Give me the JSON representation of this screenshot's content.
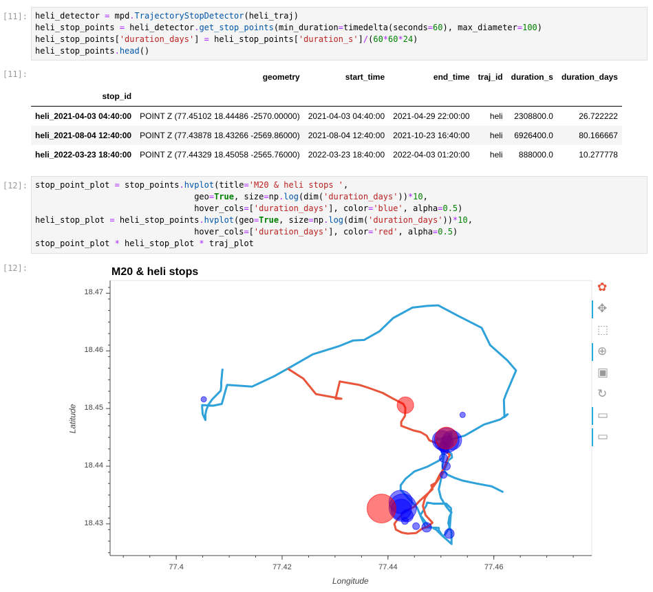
{
  "cells": [
    {
      "prompt": "[11]:",
      "lines": [
        [
          [
            "tk-var",
            "heli_detector "
          ],
          [
            "tk-op",
            "="
          ],
          [
            "tk-var",
            " mpd"
          ],
          [
            "tk-op",
            "."
          ],
          [
            "tk-fn",
            "TrajectoryStopDetector"
          ],
          [
            "tk-var",
            "(heli_traj)"
          ]
        ],
        [
          [
            "tk-var",
            "heli_stop_points "
          ],
          [
            "tk-op",
            "="
          ],
          [
            "tk-var",
            " heli_detector"
          ],
          [
            "tk-op",
            "."
          ],
          [
            "tk-fn",
            "get_stop_points"
          ],
          [
            "tk-var",
            "(min_duration"
          ],
          [
            "tk-op",
            "="
          ],
          [
            "tk-var",
            "timedelta(seconds"
          ],
          [
            "tk-op",
            "="
          ],
          [
            "tk-num",
            "60"
          ],
          [
            "tk-var",
            "), max_diameter"
          ],
          [
            "tk-op",
            "="
          ],
          [
            "tk-num",
            "100"
          ],
          [
            "tk-var",
            ")"
          ]
        ],
        [
          [
            "tk-var",
            "heli_stop_points["
          ],
          [
            "tk-str",
            "'duration_days'"
          ],
          [
            "tk-var",
            "] "
          ],
          [
            "tk-op",
            "="
          ],
          [
            "tk-var",
            " heli_stop_points["
          ],
          [
            "tk-str",
            "'duration_s'"
          ],
          [
            "tk-var",
            "]"
          ],
          [
            "tk-op",
            "/"
          ],
          [
            "tk-var",
            "("
          ],
          [
            "tk-num",
            "60"
          ],
          [
            "tk-op",
            "*"
          ],
          [
            "tk-num",
            "60"
          ],
          [
            "tk-op",
            "*"
          ],
          [
            "tk-num",
            "24"
          ],
          [
            "tk-var",
            ")"
          ]
        ],
        [
          [
            "tk-var",
            "heli_stop_points"
          ],
          [
            "tk-op",
            "."
          ],
          [
            "tk-fn",
            "head"
          ],
          [
            "tk-var",
            "()"
          ]
        ]
      ]
    },
    {
      "prompt": "[12]:",
      "lines": [
        [
          [
            "tk-var",
            "stop_point_plot "
          ],
          [
            "tk-op",
            "="
          ],
          [
            "tk-var",
            " stop_points"
          ],
          [
            "tk-op",
            "."
          ],
          [
            "tk-fn",
            "hvplot"
          ],
          [
            "tk-var",
            "(title"
          ],
          [
            "tk-op",
            "="
          ],
          [
            "tk-str",
            "'M20 & heli stops '"
          ],
          [
            "tk-var",
            ","
          ]
        ],
        [
          [
            "tk-var",
            "                                geo"
          ],
          [
            "tk-op",
            "="
          ],
          [
            "tk-kw",
            "True"
          ],
          [
            "tk-var",
            ", size"
          ],
          [
            "tk-op",
            "="
          ],
          [
            "tk-var",
            "np"
          ],
          [
            "tk-op",
            "."
          ],
          [
            "tk-fn",
            "log"
          ],
          [
            "tk-var",
            "(dim("
          ],
          [
            "tk-str",
            "'duration_days'"
          ],
          [
            "tk-var",
            "))"
          ],
          [
            "tk-op",
            "*"
          ],
          [
            "tk-num",
            "10"
          ],
          [
            "tk-var",
            ","
          ]
        ],
        [
          [
            "tk-var",
            "                                hover_cols"
          ],
          [
            "tk-op",
            "="
          ],
          [
            "tk-var",
            "["
          ],
          [
            "tk-str",
            "'duration_days'"
          ],
          [
            "tk-var",
            "], color"
          ],
          [
            "tk-op",
            "="
          ],
          [
            "tk-str",
            "'blue'"
          ],
          [
            "tk-var",
            ", alpha"
          ],
          [
            "tk-op",
            "="
          ],
          [
            "tk-num",
            "0.5"
          ],
          [
            "tk-var",
            ")"
          ]
        ],
        [
          [
            "tk-var",
            "heli_stop_plot "
          ],
          [
            "tk-op",
            "="
          ],
          [
            "tk-var",
            " heli_stop_points"
          ],
          [
            "tk-op",
            "."
          ],
          [
            "tk-fn",
            "hvplot"
          ],
          [
            "tk-var",
            "(geo"
          ],
          [
            "tk-op",
            "="
          ],
          [
            "tk-kw",
            "True"
          ],
          [
            "tk-var",
            ", size"
          ],
          [
            "tk-op",
            "="
          ],
          [
            "tk-var",
            "np"
          ],
          [
            "tk-op",
            "."
          ],
          [
            "tk-fn",
            "log"
          ],
          [
            "tk-var",
            "(dim("
          ],
          [
            "tk-str",
            "'duration_days'"
          ],
          [
            "tk-var",
            "))"
          ],
          [
            "tk-op",
            "*"
          ],
          [
            "tk-num",
            "10"
          ],
          [
            "tk-var",
            ","
          ]
        ],
        [
          [
            "tk-var",
            "                                hover_cols"
          ],
          [
            "tk-op",
            "="
          ],
          [
            "tk-var",
            "["
          ],
          [
            "tk-str",
            "'duration_days'"
          ],
          [
            "tk-var",
            "], color"
          ],
          [
            "tk-op",
            "="
          ],
          [
            "tk-str",
            "'red'"
          ],
          [
            "tk-var",
            ", alpha"
          ],
          [
            "tk-op",
            "="
          ],
          [
            "tk-num",
            "0.5"
          ],
          [
            "tk-var",
            ")"
          ]
        ],
        [
          [
            "tk-var",
            "stop_point_plot "
          ],
          [
            "tk-op",
            "*"
          ],
          [
            "tk-var",
            " heli_stop_plot "
          ],
          [
            "tk-op",
            "*"
          ],
          [
            "tk-var",
            " traj_plot"
          ]
        ]
      ]
    }
  ],
  "out_prompts": {
    "table": "[11]:",
    "plot": "[12]:"
  },
  "table": {
    "columns": [
      "geometry",
      "start_time",
      "end_time",
      "traj_id",
      "duration_s",
      "duration_days"
    ],
    "index_name": "stop_id",
    "rows": [
      {
        "stop_id": "heli_2021-04-03 04:40:00",
        "cells": [
          "POINT Z (77.45102 18.44486 -2570.00000)",
          "2021-04-03 04:40:00",
          "2021-04-29 22:00:00",
          "heli",
          "2308800.0",
          "26.722222"
        ]
      },
      {
        "stop_id": "heli_2021-08-04 12:40:00",
        "cells": [
          "POINT Z (77.43878 18.43266 -2569.86000)",
          "2021-08-04 12:40:00",
          "2021-10-23 16:40:00",
          "heli",
          "6926400.0",
          "80.166667"
        ]
      },
      {
        "stop_id": "heli_2022-03-23 18:40:00",
        "cells": [
          "POINT Z (77.44329 18.45058 -2565.76000)",
          "2022-03-23 18:40:00",
          "2022-04-03 01:20:00",
          "heli",
          "888000.0",
          "10.277778"
        ]
      }
    ]
  },
  "plot": {
    "title": "M20 & heli stops",
    "xlabel": "Longitude",
    "ylabel": "Latitude",
    "colors": {
      "traj": "#30a2da",
      "heli": "#e9553a",
      "m20": "#0000ff",
      "heli_stop": "#ff0000",
      "tool_active": "#26aae1"
    }
  },
  "chart_data": {
    "type": "scatter",
    "title": "M20 & heli stops",
    "xlabel": "Longitude",
    "ylabel": "Latitude",
    "xlim": [
      77.3875,
      77.4785
    ],
    "ylim": [
      18.4245,
      18.4722
    ],
    "xticks": [
      "77.4",
      "77.42",
      "77.44",
      "77.46"
    ],
    "yticks": [
      "18.43",
      "18.44",
      "18.45",
      "18.46",
      "18.47"
    ],
    "series": [
      {
        "type": "line",
        "x": [
          77.4088,
          77.4087,
          77.4086,
          77.4085,
          77.4085,
          77.4084,
          77.4068,
          77.4061,
          77.4057,
          77.4055,
          77.4055,
          77.405,
          77.4049,
          77.4049,
          77.407,
          77.4086,
          77.4096,
          77.4143,
          77.4185,
          77.4218,
          77.4258,
          77.4307,
          77.4334,
          77.4355,
          77.4384,
          77.441,
          77.4446,
          77.4474,
          77.4495,
          77.4532,
          77.4577,
          77.4593,
          77.4625,
          77.4642,
          77.4623,
          77.4619,
          77.462,
          77.4626,
          77.4612,
          77.4581,
          77.4545,
          77.4521,
          77.4509,
          77.4512,
          77.452,
          77.4521,
          77.4514,
          77.4502,
          77.4496,
          77.45,
          77.451,
          77.4517,
          77.452,
          77.4516,
          77.4514,
          77.452,
          77.452,
          77.4513,
          77.4503,
          77.4491,
          77.4476,
          77.4466,
          77.4461,
          77.4468,
          77.4472,
          77.4474,
          77.4486,
          77.451,
          77.4519,
          77.4519,
          77.4517,
          77.4509,
          77.4504,
          77.4496,
          77.4496,
          77.4471,
          77.4462,
          77.4455,
          77.444,
          77.4434,
          77.4424,
          77.4424,
          77.4433,
          77.445,
          77.4474,
          77.4495,
          77.4504,
          77.4502,
          77.45,
          77.4499,
          77.4519,
          77.4521,
          77.4517,
          77.4514,
          77.4507,
          77.4493,
          77.4491,
          77.4498,
          77.4515,
          77.452,
          77.4518,
          77.452,
          77.452,
          77.4509,
          77.4506,
          77.4506,
          77.4503,
          77.4503,
          77.4513,
          77.4525,
          77.4541,
          77.4567,
          77.4596,
          77.4618
        ],
        "y": [
          18.4569,
          18.4566,
          18.4555,
          18.4546,
          18.4538,
          18.4531,
          18.4516,
          18.4507,
          18.4498,
          18.449,
          18.448,
          18.449,
          18.4501,
          18.4506,
          18.4505,
          18.4508,
          18.4541,
          18.4538,
          18.4556,
          18.4573,
          18.4594,
          18.4608,
          18.4618,
          18.4619,
          18.4634,
          18.4657,
          18.4675,
          18.4678,
          18.4679,
          18.4661,
          18.464,
          18.461,
          18.4584,
          18.4566,
          18.4525,
          18.4515,
          18.4485,
          18.449,
          18.4481,
          18.4472,
          18.4453,
          18.4447,
          18.4435,
          18.4428,
          18.4421,
          18.4415,
          18.441,
          18.4385,
          18.436,
          18.4345,
          18.433,
          18.4322,
          18.432,
          18.4312,
          18.4301,
          18.4285,
          18.4265,
          18.4271,
          18.4279,
          18.429,
          18.4297,
          18.4309,
          18.4315,
          18.4325,
          18.4331,
          18.4337,
          18.4335,
          18.4335,
          18.4327,
          18.432,
          18.4295,
          18.4283,
          18.4278,
          18.4289,
          18.4293,
          18.4294,
          18.4313,
          18.4328,
          18.4343,
          18.4349,
          18.4359,
          18.4367,
          18.4378,
          18.4391,
          18.4399,
          18.4409,
          18.4415,
          18.4423,
          18.4432,
          18.444,
          18.4448,
          18.4452,
          18.4457,
          18.4447,
          18.4441,
          18.4449,
          18.4444,
          18.4448,
          18.445,
          18.4458,
          18.4446,
          18.4453,
          18.4446,
          18.4437,
          18.443,
          18.442,
          18.4405,
          18.4395,
          18.4385,
          18.438,
          18.4375,
          18.437,
          18.4365,
          18.4355
        ]
      },
      {
        "type": "line",
        "x": [
          77.4211,
          77.424,
          77.4264,
          77.4312,
          77.4301,
          77.4309,
          77.4346,
          77.4363,
          77.439,
          77.441,
          77.4429,
          77.4433,
          77.4432,
          77.4425,
          77.4425,
          77.4448,
          77.4462,
          77.4473,
          77.4478,
          77.4494,
          77.4496,
          77.4506,
          77.4513,
          77.4517,
          77.4513,
          77.4507,
          77.4497,
          77.449,
          77.4482,
          77.4484,
          77.4477,
          77.447,
          77.4466,
          77.4471,
          77.4484,
          77.4475,
          77.4465,
          77.4453,
          77.4437,
          77.4426,
          77.4415,
          77.4412,
          77.442,
          77.443,
          77.445,
          77.446,
          77.4478,
          77.449,
          77.4505
        ],
        "y": [
          18.4569,
          18.4552,
          18.4525,
          18.4517,
          18.4517,
          18.4547,
          18.4541,
          18.4536,
          18.4527,
          18.4517,
          18.4508,
          18.4501,
          18.4487,
          18.4477,
          18.447,
          18.4462,
          18.4459,
          18.4453,
          18.4445,
          18.4439,
          18.4432,
          18.4427,
          18.4423,
          18.4419,
          18.4414,
          18.4398,
          18.4384,
          18.4371,
          18.4367,
          18.436,
          18.4354,
          18.4345,
          18.4331,
          18.4315,
          18.4302,
          18.4295,
          18.4292,
          18.4284,
          18.4283,
          18.4285,
          18.429,
          18.43,
          18.431,
          18.432,
          18.433,
          18.434,
          18.4355,
          18.437,
          18.439
        ]
      },
      {
        "name": "",
        "type": "scatter",
        "x": [
          77.4052,
          77.4541,
          77.4502,
          77.4511,
          77.4521,
          77.4512,
          77.4506,
          77.4507,
          77.4505,
          77.4424,
          77.4428,
          77.4425,
          77.4436,
          77.4432,
          77.4453,
          77.4473,
          77.4516,
          77.451,
          77.4505
        ],
        "y": [
          18.4516,
          18.4489,
          18.4445,
          18.4445,
          18.4445,
          18.4442,
          18.4433,
          18.4428,
          18.4414,
          18.4338,
          18.4328,
          18.4325,
          18.4314,
          18.4305,
          18.4296,
          18.4294,
          18.4283,
          18.44,
          18.4385
        ],
        "r": [
          4,
          4,
          14,
          18,
          14,
          9,
          7,
          6,
          6,
          17,
          20,
          15,
          9,
          5,
          5,
          7,
          7,
          6,
          5
        ]
      },
      {
        "name": "",
        "type": "scatter",
        "x": [
          77.45102,
          77.43878,
          77.44329
        ],
        "y": [
          18.44486,
          18.43266,
          18.45058
        ],
        "r": [
          16,
          21,
          12
        ]
      }
    ]
  },
  "toolbar": [
    {
      "name": "bokeh-logo-icon",
      "glyph": "✿",
      "active": false
    },
    {
      "name": "pan-tool-icon",
      "glyph": "✥",
      "active": true
    },
    {
      "name": "box-zoom-tool-icon",
      "glyph": "⬚",
      "active": false
    },
    {
      "name": "wheel-zoom-tool-icon",
      "glyph": "⊕",
      "active": true
    },
    {
      "name": "save-tool-icon",
      "glyph": "▣",
      "active": false
    },
    {
      "name": "reset-tool-icon",
      "glyph": "↻",
      "active": false
    },
    {
      "name": "hover-tool-1-icon",
      "glyph": "▭",
      "active": true
    },
    {
      "name": "hover-tool-2-icon",
      "glyph": "▭",
      "active": true
    }
  ]
}
